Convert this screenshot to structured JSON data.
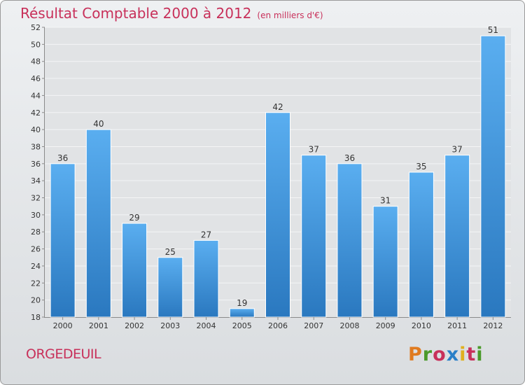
{
  "chart_data": {
    "type": "bar",
    "title": "Résultat Comptable 2000 à 2012",
    "unit_label": "(en milliers d'€)",
    "categories": [
      "2000",
      "2001",
      "2002",
      "2003",
      "2004",
      "2005",
      "2006",
      "2007",
      "2008",
      "2009",
      "2010",
      "2011",
      "2012"
    ],
    "values": [
      36,
      40,
      29,
      25,
      27,
      19,
      42,
      37,
      36,
      31,
      35,
      37,
      51
    ],
    "ylim": [
      18,
      52
    ],
    "yticks": [
      18,
      20,
      22,
      24,
      26,
      28,
      30,
      32,
      34,
      36,
      38,
      40,
      42,
      44,
      46,
      48,
      50,
      52
    ],
    "xlabel": "",
    "ylabel": "",
    "grid": true,
    "bar_color": "#3a8fd6"
  },
  "footer": {
    "commune": "ORGEDEUIL",
    "logo": "Proxiti",
    "logo_colors": [
      "#e07a1f",
      "#4a9a2a",
      "#c8305a",
      "#2a7fc8",
      "#e0b01f",
      "#c8305a",
      "#4a9a2a"
    ]
  },
  "colors": {
    "accent": "#c8305a"
  }
}
